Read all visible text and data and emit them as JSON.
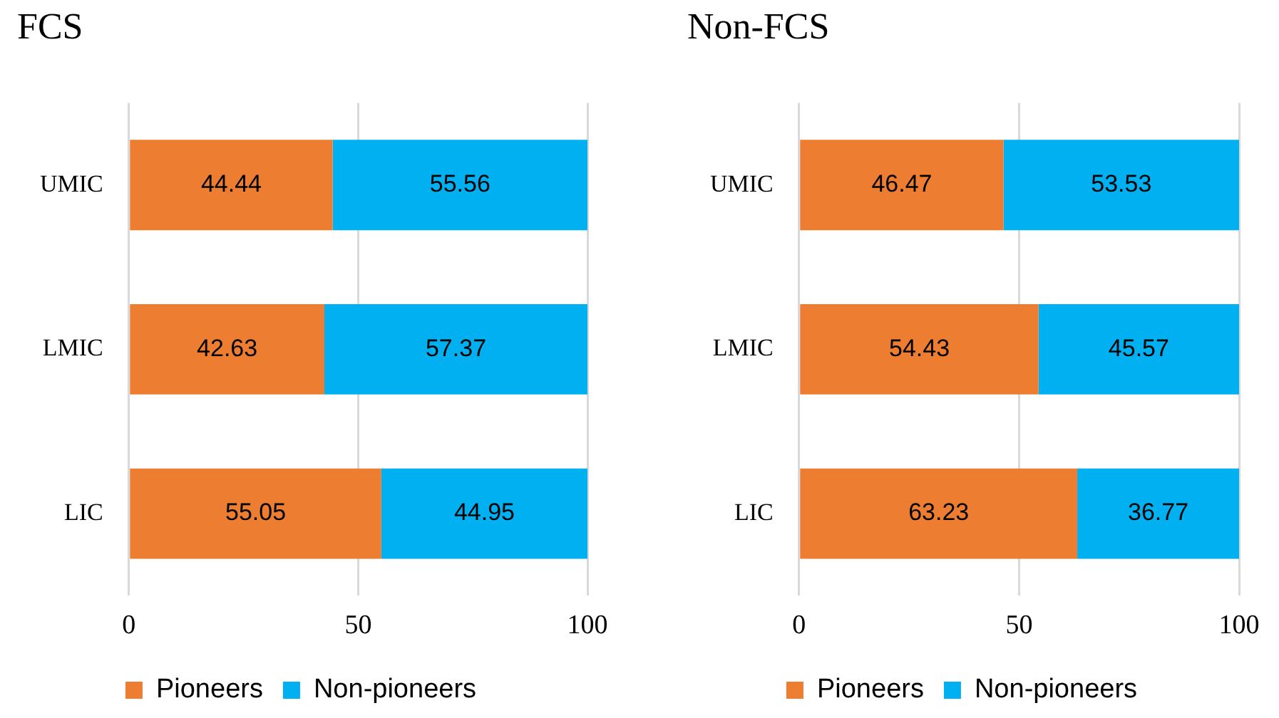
{
  "chart_data": [
    {
      "type": "bar",
      "title": "FCS",
      "orientation": "horizontal",
      "stacked": true,
      "categories": [
        "UMIC",
        "LMIC",
        "LIC"
      ],
      "series": [
        {
          "name": "Pioneers",
          "color": "#ed7d31",
          "values": [
            44.44,
            42.63,
            55.05
          ]
        },
        {
          "name": "Non-pioneers",
          "color": "#00b0f0",
          "values": [
            55.56,
            57.37,
            44.95
          ]
        }
      ],
      "xlim": [
        0,
        100
      ],
      "xticks": [
        0,
        50,
        100
      ],
      "grid": "x",
      "legend": "bottom",
      "data_labels": true
    },
    {
      "type": "bar",
      "title": "Non-FCS",
      "orientation": "horizontal",
      "stacked": true,
      "categories": [
        "UMIC",
        "LMIC",
        "LIC"
      ],
      "series": [
        {
          "name": "Pioneers",
          "color": "#ed7d31",
          "values": [
            46.47,
            54.43,
            63.23
          ]
        },
        {
          "name": "Non-pioneers",
          "color": "#00b0f0",
          "values": [
            53.53,
            45.57,
            36.77
          ]
        }
      ],
      "xlim": [
        0,
        100
      ],
      "xticks": [
        0,
        50,
        100
      ],
      "grid": "x",
      "legend": "bottom",
      "data_labels": true
    }
  ]
}
